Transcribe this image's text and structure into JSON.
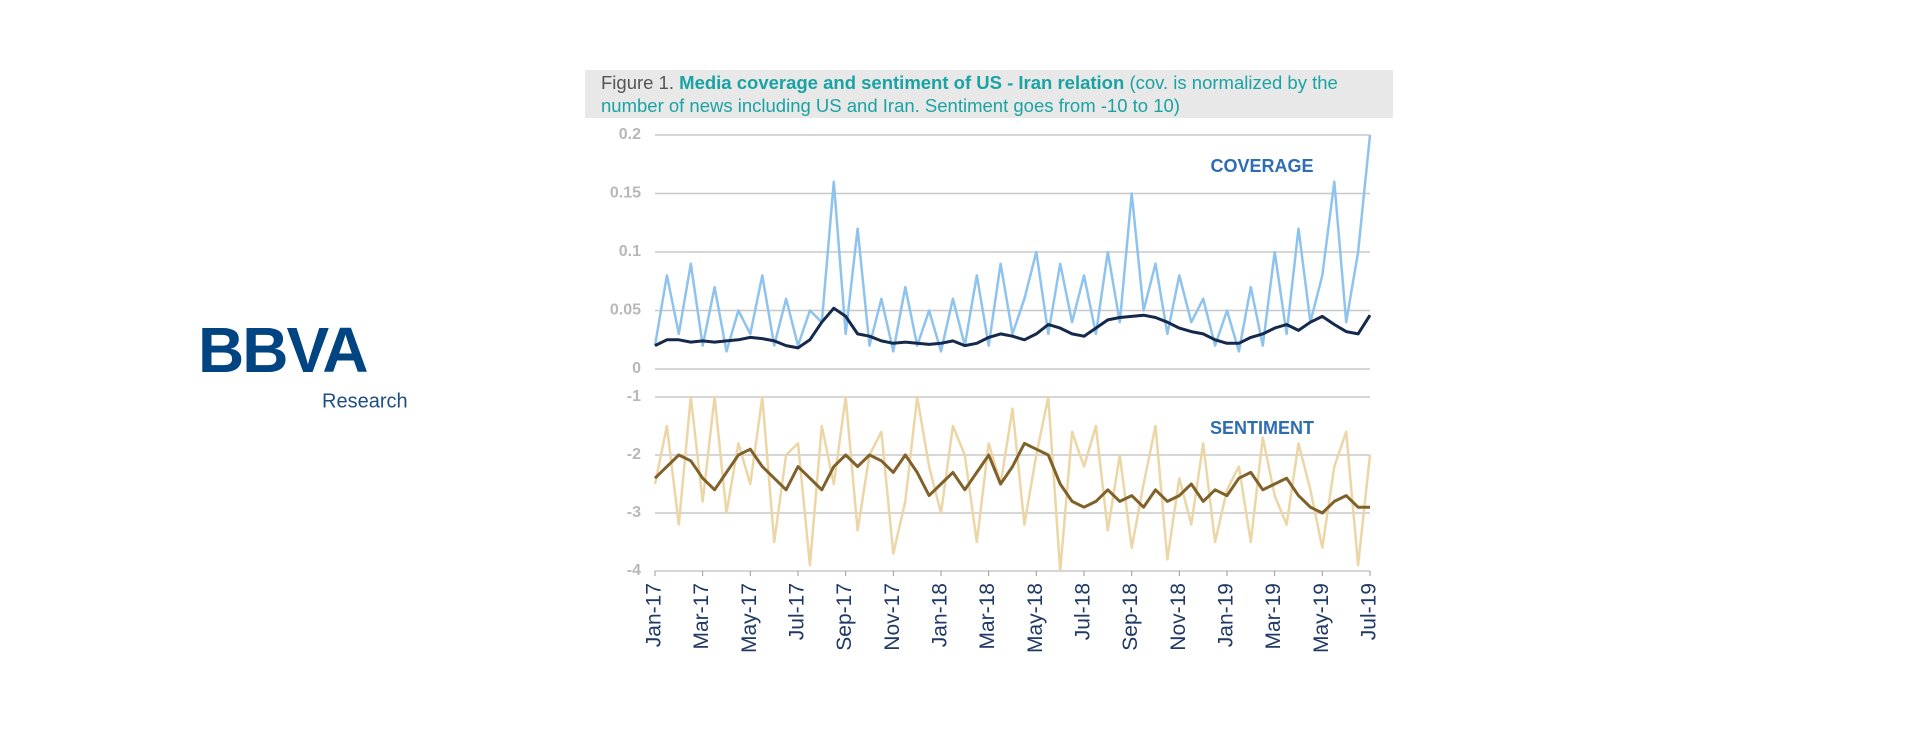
{
  "logo": {
    "brand": "BBVA",
    "unit": "Research"
  },
  "caption": {
    "label": "Figure 1.",
    "title": "Media coverage and sentiment of US - Iran relation",
    "note": "(cov. is normalized by the number of news including US and Iran. Sentiment goes from -10 to 10)"
  },
  "chart_data": [
    {
      "type": "line",
      "annotation": "COVERAGE",
      "x": [
        0,
        0.5,
        1,
        1.5,
        2,
        2.5,
        3,
        3.5,
        4,
        4.5,
        5,
        5.5,
        6,
        6.5,
        7,
        7.5,
        8,
        8.5,
        9,
        9.5,
        10,
        10.5,
        11,
        11.5,
        12,
        12.5,
        13,
        13.5,
        14,
        14.5,
        15,
        15.5,
        16,
        16.5,
        17,
        17.5,
        18,
        18.5,
        19,
        19.5,
        20,
        20.5,
        21,
        21.5,
        22,
        22.5,
        23,
        23.5,
        24,
        24.5,
        25,
        25.5,
        26,
        26.5,
        27,
        27.5,
        28,
        28.5,
        29,
        29.5,
        30
      ],
      "xlim": [
        0,
        30
      ],
      "ylim": [
        0,
        0.2
      ],
      "yticks": [
        0,
        0.05,
        0.1,
        0.15,
        0.2
      ],
      "grid": true,
      "series": [
        {
          "color": "#8ec3ee",
          "values": [
            0.02,
            0.08,
            0.03,
            0.09,
            0.02,
            0.07,
            0.015,
            0.05,
            0.03,
            0.08,
            0.02,
            0.06,
            0.02,
            0.05,
            0.04,
            0.16,
            0.03,
            0.12,
            0.02,
            0.06,
            0.015,
            0.07,
            0.02,
            0.05,
            0.015,
            0.06,
            0.02,
            0.08,
            0.02,
            0.09,
            0.03,
            0.06,
            0.1,
            0.03,
            0.09,
            0.04,
            0.08,
            0.03,
            0.1,
            0.04,
            0.15,
            0.05,
            0.09,
            0.03,
            0.08,
            0.04,
            0.06,
            0.02,
            0.05,
            0.015,
            0.07,
            0.02,
            0.1,
            0.03,
            0.12,
            0.04,
            0.08,
            0.16,
            0.04,
            0.1,
            0.2
          ]
        },
        {
          "color": "#14294b",
          "values": [
            0.02,
            0.025,
            0.025,
            0.023,
            0.024,
            0.023,
            0.024,
            0.025,
            0.027,
            0.026,
            0.024,
            0.02,
            0.018,
            0.025,
            0.04,
            0.052,
            0.045,
            0.03,
            0.028,
            0.024,
            0.022,
            0.023,
            0.022,
            0.021,
            0.022,
            0.024,
            0.02,
            0.022,
            0.027,
            0.03,
            0.028,
            0.025,
            0.03,
            0.038,
            0.035,
            0.03,
            0.028,
            0.035,
            0.042,
            0.044,
            0.045,
            0.046,
            0.044,
            0.04,
            0.035,
            0.032,
            0.03,
            0.025,
            0.022,
            0.022,
            0.027,
            0.03,
            0.035,
            0.038,
            0.033,
            0.04,
            0.045,
            0.038,
            0.032,
            0.03,
            0.046
          ]
        }
      ]
    },
    {
      "type": "line",
      "annotation": "SENTIMENT",
      "x": [
        0,
        0.5,
        1,
        1.5,
        2,
        2.5,
        3,
        3.5,
        4,
        4.5,
        5,
        5.5,
        6,
        6.5,
        7,
        7.5,
        8,
        8.5,
        9,
        9.5,
        10,
        10.5,
        11,
        11.5,
        12,
        12.5,
        13,
        13.5,
        14,
        14.5,
        15,
        15.5,
        16,
        16.5,
        17,
        17.5,
        18,
        18.5,
        19,
        19.5,
        20,
        20.5,
        21,
        21.5,
        22,
        22.5,
        23,
        23.5,
        24,
        24.5,
        25,
        25.5,
        26,
        26.5,
        27,
        27.5,
        28,
        28.5,
        29,
        29.5,
        30
      ],
      "xlim": [
        0,
        30
      ],
      "xticks": [
        {
          "value": 0,
          "label": "Jan-17"
        },
        {
          "value": 2,
          "label": "Mar-17"
        },
        {
          "value": 4,
          "label": "May-17"
        },
        {
          "value": 6,
          "label": "Jul-17"
        },
        {
          "value": 8,
          "label": "Sep-17"
        },
        {
          "value": 10,
          "label": "Nov-17"
        },
        {
          "value": 12,
          "label": "Jan-18"
        },
        {
          "value": 14,
          "label": "Mar-18"
        },
        {
          "value": 16,
          "label": "May-18"
        },
        {
          "value": 18,
          "label": "Jul-18"
        },
        {
          "value": 20,
          "label": "Sep-18"
        },
        {
          "value": 22,
          "label": "Nov-18"
        },
        {
          "value": 24,
          "label": "Jan-19"
        },
        {
          "value": 26,
          "label": "Mar-19"
        },
        {
          "value": 28,
          "label": "May-19"
        },
        {
          "value": 30,
          "label": "Jul-19"
        }
      ],
      "ylim": [
        -4,
        -1
      ],
      "yticks": [
        -4,
        -3,
        -2,
        -1
      ],
      "grid": true,
      "series": [
        {
          "color": "#ecd6a6",
          "values": [
            -2.5,
            -1.5,
            -3.2,
            -1,
            -2.8,
            -1,
            -3,
            -1.8,
            -2.5,
            -1,
            -3.5,
            -2,
            -1.8,
            -3.9,
            -1.5,
            -2.5,
            -1,
            -3.3,
            -2,
            -1.6,
            -3.7,
            -2.8,
            -1,
            -2.2,
            -3,
            -1.5,
            -2,
            -3.5,
            -1.8,
            -2.5,
            -1.2,
            -3.2,
            -2,
            -1,
            -4,
            -1.6,
            -2.2,
            -1.5,
            -3.3,
            -2,
            -3.6,
            -2.5,
            -1.5,
            -3.8,
            -2.4,
            -3.2,
            -1.8,
            -3.5,
            -2.6,
            -2.2,
            -3.5,
            -1.7,
            -2.7,
            -3.2,
            -1.8,
            -2.6,
            -3.6,
            -2.2,
            -1.6,
            -3.9,
            -2
          ]
        },
        {
          "color": "#80612a",
          "values": [
            -2.4,
            -2.2,
            -2.0,
            -2.1,
            -2.4,
            -2.6,
            -2.3,
            -2.0,
            -1.9,
            -2.2,
            -2.4,
            -2.6,
            -2.2,
            -2.4,
            -2.6,
            -2.2,
            -2.0,
            -2.2,
            -2.0,
            -2.1,
            -2.3,
            -2.0,
            -2.3,
            -2.7,
            -2.5,
            -2.3,
            -2.6,
            -2.3,
            -2.0,
            -2.5,
            -2.2,
            -1.8,
            -1.9,
            -2.0,
            -2.5,
            -2.8,
            -2.9,
            -2.8,
            -2.6,
            -2.8,
            -2.7,
            -2.9,
            -2.6,
            -2.8,
            -2.7,
            -2.5,
            -2.8,
            -2.6,
            -2.7,
            -2.4,
            -2.3,
            -2.6,
            -2.5,
            -2.4,
            -2.7,
            -2.9,
            -3.0,
            -2.8,
            -2.7,
            -2.9,
            -2.9
          ]
        }
      ]
    }
  ]
}
